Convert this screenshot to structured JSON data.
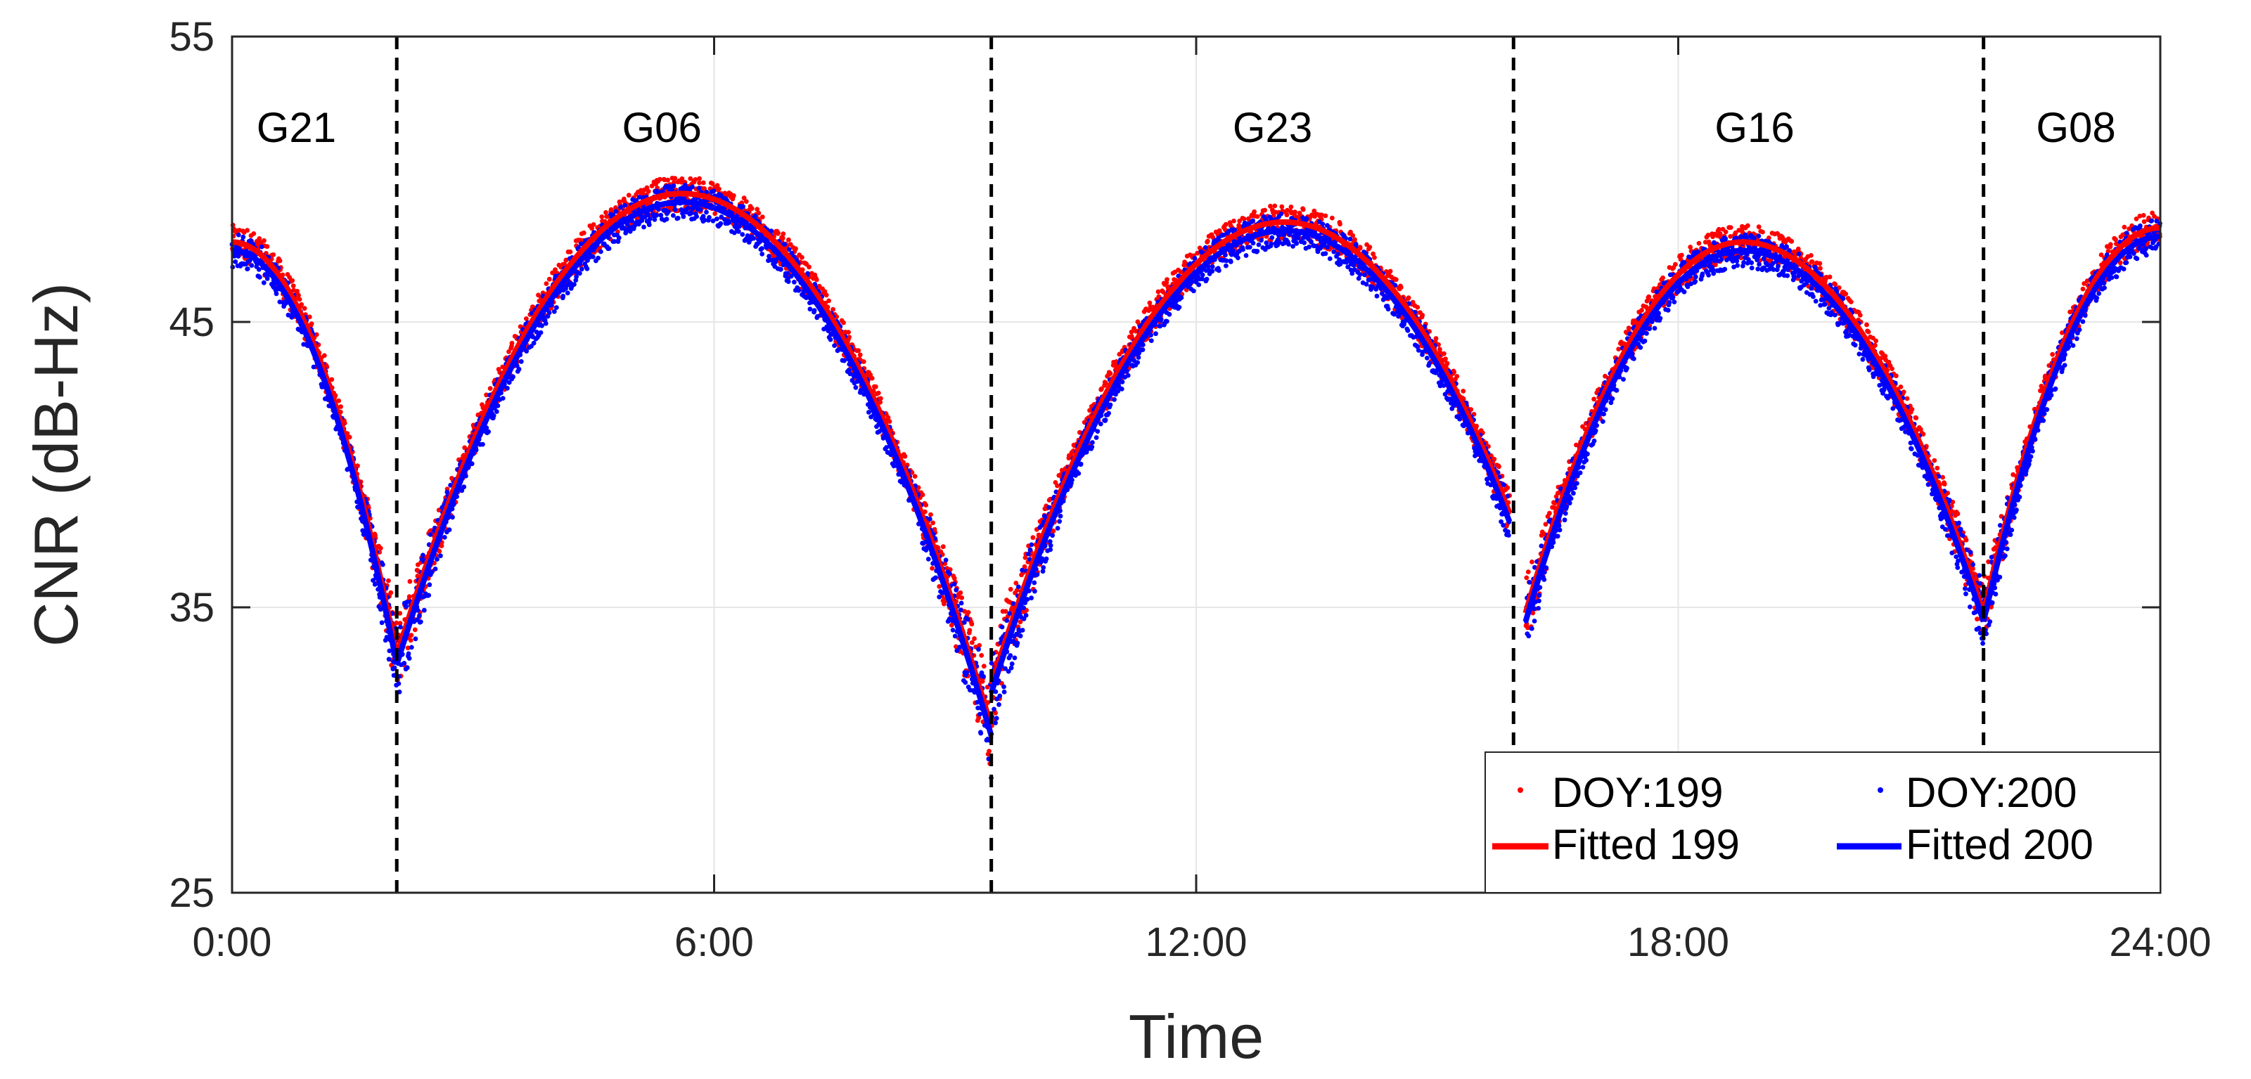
{
  "chart_data": {
    "type": "scatter",
    "xlabel": "Time",
    "ylabel": "CNR (dB-Hz)",
    "xlim": [
      0,
      24
    ],
    "ylim": [
      25,
      55
    ],
    "x_ticks": [
      0,
      6,
      12,
      18,
      24
    ],
    "x_tick_labels": [
      "0:00",
      "6:00",
      "12:00",
      "18:00",
      "24:00"
    ],
    "y_ticks": [
      25,
      35,
      45,
      55
    ],
    "y_tick_labels": [
      "25",
      "35",
      "45",
      "55"
    ],
    "grid": true,
    "legend_location": "bottom-right",
    "satellite_boundaries_hours": [
      2.05,
      9.45,
      15.95,
      21.8
    ],
    "satellite_labels": [
      {
        "name": "G21",
        "x": 0.8
      },
      {
        "name": "G06",
        "x": 5.35
      },
      {
        "name": "G23",
        "x": 12.95
      },
      {
        "name": "G16",
        "x": 18.95
      },
      {
        "name": "G08",
        "x": 22.95
      }
    ],
    "segments": [
      {
        "sat": "G21",
        "start": 0.0,
        "end": 2.05,
        "start_cnr": 47.5,
        "peak_time": 0.0,
        "peak_cnr": 47.5,
        "end_cnr": 33.0
      },
      {
        "sat": "G06",
        "start": 2.05,
        "end": 9.45,
        "start_cnr": 33.0,
        "peak_time": 5.6,
        "peak_cnr": 49.2,
        "end_cnr": 30.5
      },
      {
        "sat": "G23",
        "start": 9.45,
        "end": 15.9,
        "start_cnr": 32.0,
        "peak_time": 13.1,
        "peak_cnr": 48.2,
        "end_cnr": 38.0
      },
      {
        "sat": "G16",
        "start": 16.1,
        "end": 21.8,
        "start_cnr": 34.5,
        "peak_time": 18.8,
        "peak_cnr": 47.5,
        "end_cnr": 34.5
      },
      {
        "sat": "G08",
        "start": 21.8,
        "end": 24.0,
        "start_cnr": 34.5,
        "peak_time": 24.0,
        "peak_cnr": 48.0,
        "end_cnr": 48.0
      }
    ],
    "series": [
      {
        "name": "DOY:199",
        "kind": "scatter",
        "color": "#ff0000",
        "offset_db": 0.3
      },
      {
        "name": "DOY:200",
        "kind": "scatter",
        "color": "#0000ff",
        "offset_db": 0.0
      },
      {
        "name": "Fitted 199",
        "kind": "line",
        "color": "#ff0000",
        "offset_db": 0.3
      },
      {
        "name": "Fitted 200",
        "kind": "line",
        "color": "#0000ff",
        "offset_db": 0.0
      }
    ],
    "legend": {
      "entries": [
        "DOY:199",
        "DOY:200",
        "Fitted 199",
        "Fitted 200"
      ]
    }
  }
}
